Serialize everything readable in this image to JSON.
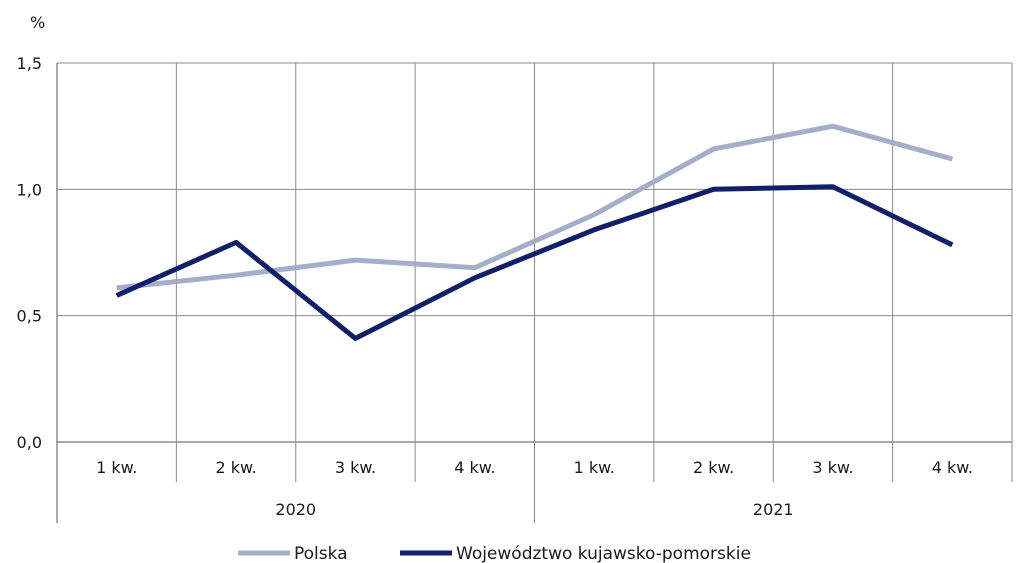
{
  "chart_data": {
    "type": "line",
    "ylabel": "%",
    "ylim": [
      0,
      1.5
    ],
    "yticks": [
      "0,0",
      "0,5",
      "1,0",
      "1,5"
    ],
    "ytick_values": [
      0,
      0.5,
      1.0,
      1.5
    ],
    "categories": [
      "1 kw.",
      "2 kw.",
      "3 kw.",
      "4 kw.",
      "1 kw.",
      "2 kw.",
      "3 kw.",
      "4 kw."
    ],
    "groups": [
      {
        "label": "2020",
        "span": 4
      },
      {
        "label": "2021",
        "span": 4
      }
    ],
    "grid": true,
    "legend_position": "bottom",
    "series": [
      {
        "name": "Polska",
        "color": "#a3aecb",
        "values": [
          0.61,
          0.66,
          0.72,
          0.69,
          0.9,
          1.16,
          1.25,
          1.12
        ]
      },
      {
        "name": "Województwo kujawsko-pomorskie",
        "color": "#0f1f6b",
        "values": [
          0.58,
          0.79,
          0.41,
          0.65,
          0.84,
          1.0,
          1.01,
          0.78
        ]
      }
    ]
  }
}
